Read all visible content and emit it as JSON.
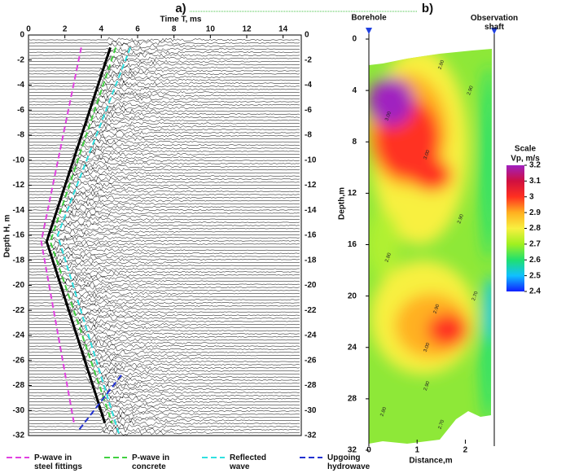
{
  "chart_data": [
    {
      "type": "line",
      "title": "a)",
      "x_label": "Time T, ms",
      "y_label": "Depth H, m",
      "xlim": [
        0,
        15
      ],
      "ylim": [
        -32,
        0
      ],
      "xticks": [
        0,
        2,
        4,
        6,
        8,
        10,
        12,
        14
      ],
      "yticks": [
        0,
        -2,
        -4,
        -6,
        -8,
        -10,
        -12,
        -14,
        -16,
        -18,
        -20,
        -22,
        -24,
        -26,
        -28,
        -30,
        -32
      ],
      "series": [
        {
          "color": "#000000",
          "dash": "solid",
          "x": [
            4.5,
            1.0,
            4.2
          ],
          "y": [
            -1,
            -16.5,
            -31
          ]
        },
        {
          "name": "P-wave in steel fittings",
          "color": "#e040e0",
          "dash": "dashed",
          "x": [
            2.9,
            0.7,
            2.5
          ],
          "y": [
            -1,
            -16.5,
            -31
          ]
        },
        {
          "name": "P-wave in concrete",
          "color": "#40d040",
          "dash": "dashed",
          "x": [
            4.8,
            1.2,
            4.6
          ],
          "y": [
            -1,
            -16.5,
            -31
          ]
        },
        {
          "name": "Reflected wave",
          "color": "#30e0e0",
          "dash": "dashed",
          "x": [
            5.6,
            1.6,
            5.0
          ],
          "y": [
            -1,
            -16,
            -32
          ]
        },
        {
          "name": "Upgoing hydrowave",
          "color": "#2030d0",
          "dash": "dashed",
          "x": [
            2.8,
            5.2
          ],
          "y": [
            -31.5,
            -27
          ]
        }
      ]
    },
    {
      "type": "heatmap",
      "title": "b)",
      "x_label": "Distance,m",
      "y_label": "Depth,m",
      "xlim": [
        0,
        2.6
      ],
      "ylim": [
        0,
        32
      ],
      "y_reversed": true,
      "xticks": [
        0,
        1,
        2
      ],
      "yticks": [
        0,
        4,
        8,
        12,
        16,
        20,
        24,
        28,
        32
      ],
      "markers": [
        {
          "label": "Borehole",
          "x": 0
        },
        {
          "label": "Observation shaft",
          "x": 2.6
        }
      ],
      "colorbar": {
        "title": "Scale",
        "subtitle": "Vp, m/s",
        "lim": [
          2.4,
          3.2
        ],
        "ticks": [
          3.2,
          3.1,
          3,
          2.9,
          2.8,
          2.7,
          2.6,
          2.5,
          2.4
        ],
        "colors": [
          "#1020ff",
          "#10c0ff",
          "#20e070",
          "#a0f020",
          "#f8f040",
          "#ffb020",
          "#ff3020",
          "#d01040",
          "#a020c0"
        ]
      },
      "contour_labels": [
        {
          "text": "3.00",
          "x": 0.4,
          "y": 6
        },
        {
          "text": "3.00",
          "x": 1.2,
          "y": 9
        },
        {
          "text": "2.80",
          "x": 1.5,
          "y": 2
        },
        {
          "text": "2.90",
          "x": 2.1,
          "y": 4
        },
        {
          "text": "2.90",
          "x": 1.9,
          "y": 14
        },
        {
          "text": "2.80",
          "x": 0.4,
          "y": 17
        },
        {
          "text": "2.90",
          "x": 1.4,
          "y": 21
        },
        {
          "text": "3.00",
          "x": 1.2,
          "y": 24
        },
        {
          "text": "2.90",
          "x": 1.2,
          "y": 27
        },
        {
          "text": "2.70",
          "x": 2.2,
          "y": 20
        },
        {
          "text": "2.80",
          "x": 0.3,
          "y": 29
        },
        {
          "text": "2.70",
          "x": 1.5,
          "y": 30
        }
      ]
    }
  ]
}
